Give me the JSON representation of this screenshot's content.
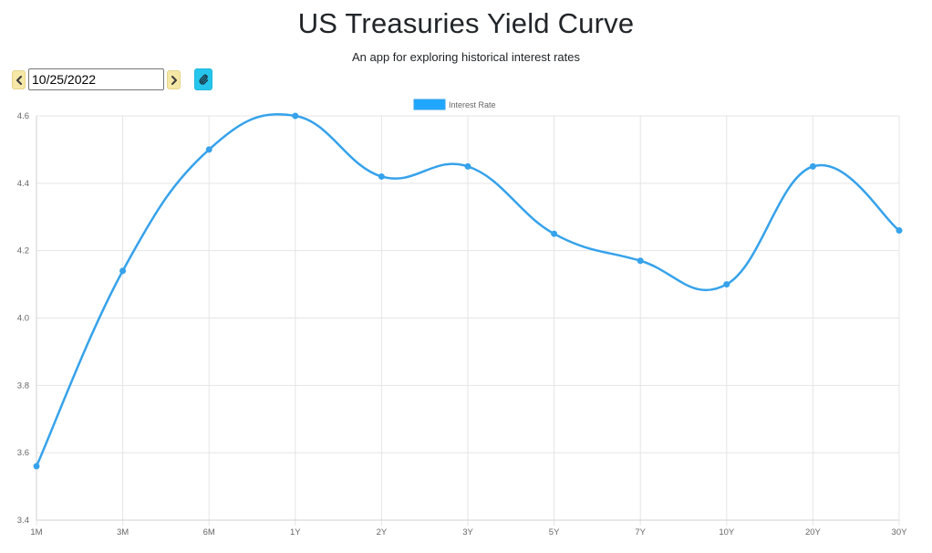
{
  "header": {
    "title": "US Treasuries Yield Curve",
    "subtitle": "An app for exploring historical interest rates"
  },
  "toolbar": {
    "date_value": "10/25/2022",
    "prev_icon": "chevron-left-icon",
    "next_icon": "chevron-right-icon",
    "link_icon": "paperclip-icon",
    "nav_button_color": "#f5e7a6",
    "link_button_color": "#26c6ec"
  },
  "chart_data": {
    "type": "line",
    "categories": [
      "1M",
      "3M",
      "6M",
      "1Y",
      "2Y",
      "3Y",
      "5Y",
      "7Y",
      "10Y",
      "20Y",
      "30Y"
    ],
    "series": [
      {
        "name": "Interest Rate",
        "values": [
          3.56,
          4.14,
          4.5,
          4.6,
          4.42,
          4.45,
          4.25,
          4.17,
          4.1,
          4.45,
          4.26
        ],
        "color": "#36a2eb"
      }
    ],
    "ylim": [
      3.4,
      4.6
    ],
    "yticks": [
      "3.4",
      "3.6",
      "3.8",
      "4.0",
      "4.2",
      "4.4",
      "4.6"
    ],
    "grid": true,
    "legend_position": "top-center",
    "smooth": true
  }
}
